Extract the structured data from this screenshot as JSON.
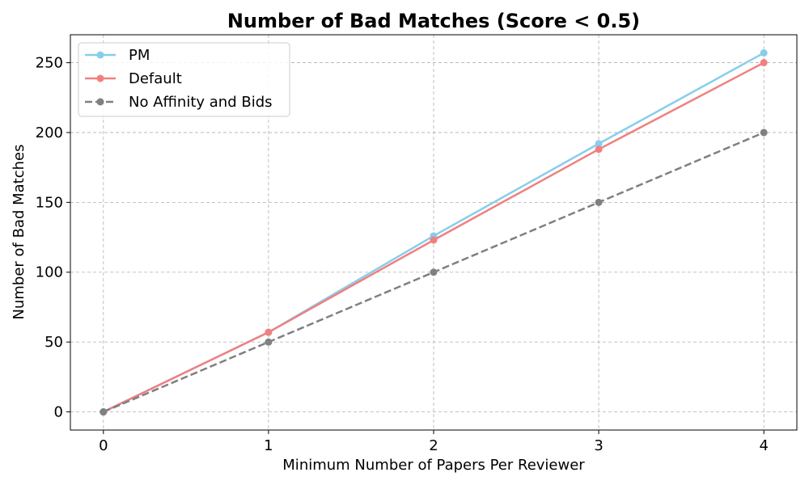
{
  "chart_data": {
    "type": "line",
    "title": "Number of Bad Matches (Score < 0.5)",
    "xlabel": "Minimum Number of Papers Per Reviewer",
    "ylabel": "Number of Bad Matches",
    "x": [
      0,
      1,
      2,
      3,
      4
    ],
    "x_ticks": [
      "0",
      "1",
      "2",
      "3",
      "4"
    ],
    "y_ticks": [
      "0",
      "50",
      "100",
      "150",
      "200",
      "250"
    ],
    "xlim": [
      -0.2,
      4.2
    ],
    "ylim": [
      -13,
      270
    ],
    "grid": true,
    "legend_position": "top-left",
    "series": [
      {
        "name": "PM",
        "values": [
          0,
          57,
          126,
          192,
          257
        ],
        "color": "#87CEEB",
        "line_style": "solid",
        "marker": "circle"
      },
      {
        "name": "Default",
        "values": [
          0,
          57,
          123,
          188,
          250
        ],
        "color": "#F08080",
        "line_style": "solid",
        "marker": "circle"
      },
      {
        "name": "No Affinity and Bids",
        "values": [
          0,
          50,
          100,
          150,
          200
        ],
        "color": "#808080",
        "line_style": "dashed",
        "marker": "circle"
      }
    ]
  }
}
